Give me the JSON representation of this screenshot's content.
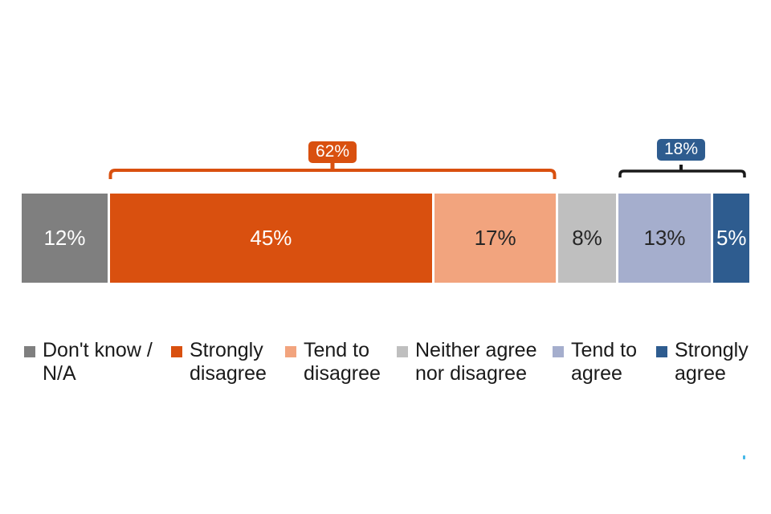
{
  "chart_data": {
    "type": "bar",
    "variant": "100-percent-stacked-horizontal",
    "title": "",
    "categories": [
      "Don't know / N/A",
      "Strongly disagree",
      "Tend to disagree",
      "Neither agree nor disagree",
      "Tend to agree",
      "Strongly agree"
    ],
    "values": [
      12,
      45,
      17,
      8,
      13,
      5
    ],
    "value_labels": [
      "12%",
      "45%",
      "17%",
      "8%",
      "13%",
      "5%"
    ],
    "segment_colors": [
      "#7F7F7F",
      "#D9500F",
      "#F2A47E",
      "#BFBFBF",
      "#A5AECD",
      "#2E5C8F"
    ],
    "value_label_colors": [
      "#FFFFFF",
      "#FFFFFF",
      "#262626",
      "#262626",
      "#262626",
      "#FFFFFF"
    ],
    "xlim": [
      0,
      100
    ],
    "grid": false,
    "legend_position": "bottom",
    "background": "#FFFFFF",
    "annotations": [
      {
        "label": "62%",
        "covers": [
          "Strongly disagree",
          "Tend to disagree"
        ],
        "value": 62,
        "box_color": "#D9500F",
        "text_color": "#FFFFFF",
        "bracket_color": "#D9500F"
      },
      {
        "label": "18%",
        "covers": [
          "Tend to agree",
          "Strongly agree"
        ],
        "value": 18,
        "box_color": "#2E5C8F",
        "text_color": "#FFFFFF",
        "bracket_color": "#1A1A1A"
      }
    ]
  },
  "legend": {
    "items": [
      {
        "label": "Don't know / N/A",
        "lines": [
          "Don't know /",
          "N/A"
        ],
        "color": "#7F7F7F"
      },
      {
        "label": "Strongly disagree",
        "lines": [
          "Strongly",
          "disagree"
        ],
        "color": "#D9500F"
      },
      {
        "label": "Tend to disagree",
        "lines": [
          "Tend to",
          "disagree"
        ],
        "color": "#F2A47E"
      },
      {
        "label": "Neither agree nor disagree",
        "lines": [
          "Neither agree",
          "nor disagree"
        ],
        "color": "#BFBFBF"
      },
      {
        "label": "Tend to agree",
        "lines": [
          "Tend to",
          "agree"
        ],
        "color": "#A5AECD"
      },
      {
        "label": "Strongly agree",
        "lines": [
          "Strongly",
          "agree"
        ],
        "color": "#2E5C8F"
      }
    ]
  },
  "decor": {
    "artifact_dot_color": "#45B8E8"
  }
}
